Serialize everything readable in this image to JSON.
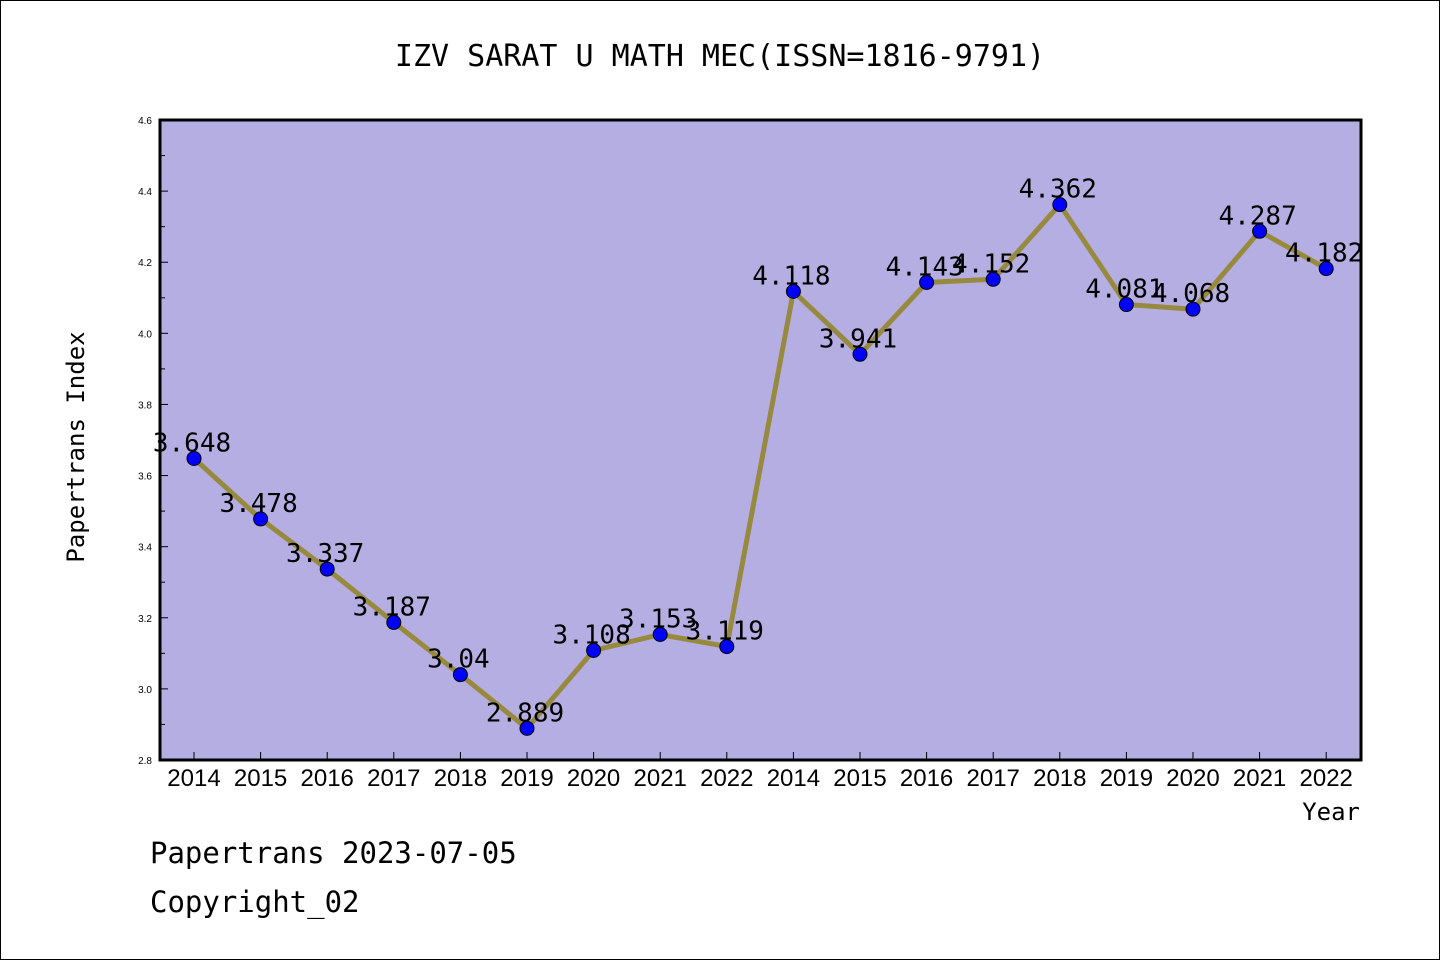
{
  "chart_data": {
    "type": "line",
    "title": "IZV SARAT U MATH MEC(ISSN=1816-9791)",
    "xlabel": "Year",
    "ylabel": "Papertrans Index",
    "ylim": [
      2.8,
      4.6
    ],
    "yticks": [
      "2.8",
      "3.0",
      "3.2",
      "3.4",
      "3.6",
      "3.8",
      "4.0",
      "4.2",
      "4.4",
      "4.6"
    ],
    "categories": [
      "2014",
      "2015",
      "2016",
      "2017",
      "2018",
      "2019",
      "2020",
      "2021",
      "2022",
      "2014",
      "2015",
      "2016",
      "2017",
      "2018",
      "2019",
      "2020",
      "2021",
      "2022"
    ],
    "values": [
      3.648,
      3.478,
      3.337,
      3.187,
      3.04,
      2.889,
      3.108,
      3.153,
      3.119,
      4.118,
      3.941,
      4.143,
      4.152,
      4.362,
      4.081,
      4.068,
      4.287,
      4.182
    ],
    "data_labels": [
      "3.648",
      "3.478",
      "3.337",
      "3.187",
      "3.04",
      "2.889",
      "3.108",
      "3.153",
      "3.119",
      "4.118",
      "3.941",
      "4.143",
      "4.152",
      "4.362",
      "4.081",
      "4.068",
      "4.287",
      "4.182"
    ],
    "grid": false,
    "colors": {
      "plot_bg": "#b5aee3",
      "line": "#978a3e",
      "marker": "#0000ff"
    }
  },
  "footer": {
    "line1": "Papertrans 2023-07-05",
    "line2": "Copyright_02"
  }
}
